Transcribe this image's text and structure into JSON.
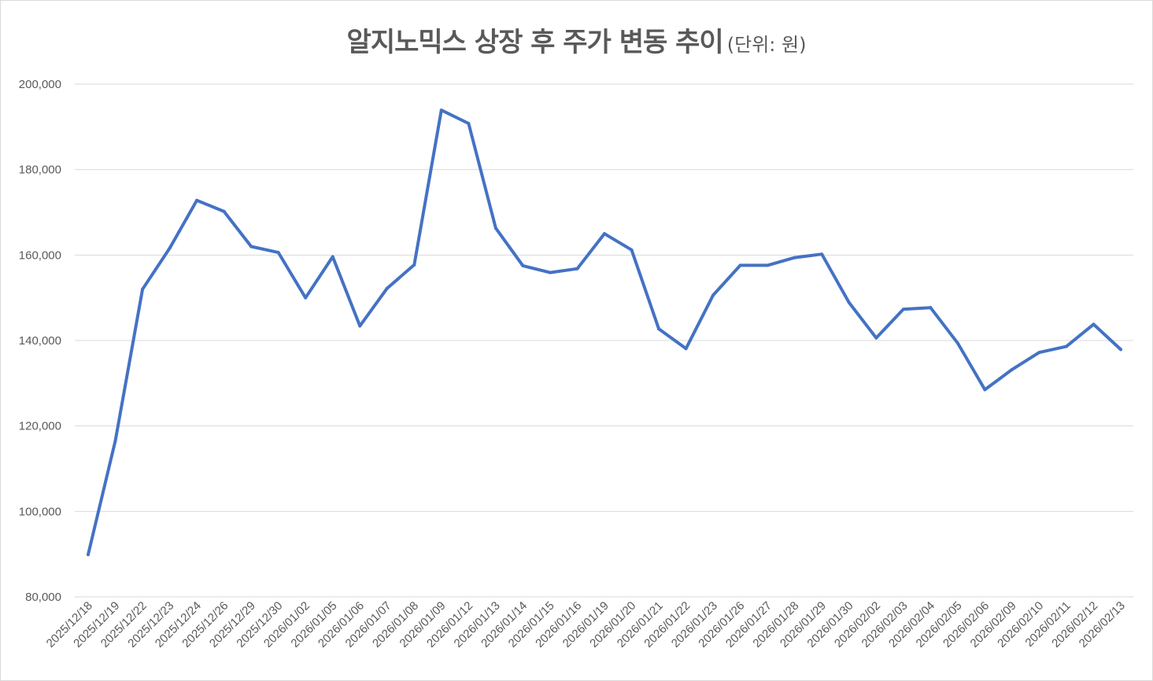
{
  "chart_data": {
    "type": "line",
    "title": "알지노믹스 상장 후 주가 변동 추이",
    "subtitle": "(단위: 원)",
    "xlabel": "",
    "ylabel": "",
    "ylim": [
      80000,
      200000
    ],
    "yticks": [
      80000,
      100000,
      120000,
      140000,
      160000,
      180000,
      200000
    ],
    "ytick_labels": [
      "80,000",
      "100,000",
      "120,000",
      "140,000",
      "160,000",
      "180,000",
      "200,000"
    ],
    "grid": true,
    "legend": "none",
    "line_color": "#4472c4",
    "categories": [
      "2025/12/18",
      "2025/12/19",
      "2025/12/22",
      "2025/12/23",
      "2025/12/24",
      "2025/12/26",
      "2025/12/29",
      "2025/12/30",
      "2026/01/02",
      "2026/01/05",
      "2026/01/06",
      "2026/01/07",
      "2026/01/08",
      "2026/01/09",
      "2026/01/12",
      "2026/01/13",
      "2026/01/14",
      "2026/01/15",
      "2026/01/16",
      "2026/01/19",
      "2026/01/20",
      "2026/01/21",
      "2026/01/22",
      "2026/01/23",
      "2026/01/26",
      "2026/01/27",
      "2026/01/28",
      "2026/01/29",
      "2026/01/30",
      "2026/02/02",
      "2026/02/03",
      "2026/02/04",
      "2026/02/05",
      "2026/02/06",
      "2026/02/09",
      "2026/02/10",
      "2026/02/11",
      "2026/02/12",
      "2026/02/13"
    ],
    "values": [
      89900,
      116500,
      152000,
      161600,
      172800,
      170200,
      162000,
      160600,
      150000,
      159600,
      143400,
      152200,
      157700,
      193900,
      190800,
      166300,
      157500,
      155900,
      156800,
      165000,
      161200,
      142700,
      138100,
      150600,
      157600,
      157600,
      159400,
      160200,
      148900,
      140600,
      147300,
      147700,
      139400,
      128500,
      133200,
      137200,
      138600,
      143800,
      137900
    ]
  }
}
